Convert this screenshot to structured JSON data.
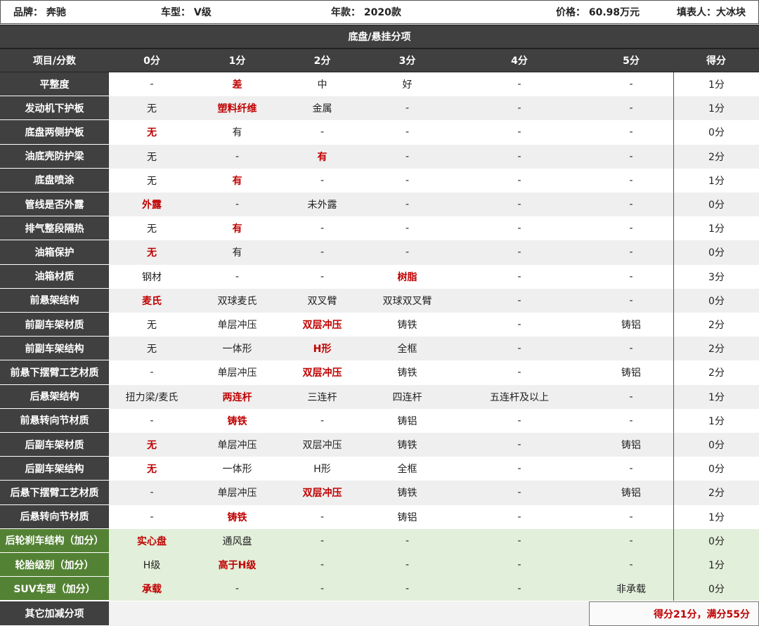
{
  "header": {
    "brand": "品牌：  奔驰",
    "model": "车型：  V级",
    "year": "年款：  2020款",
    "price": "价格：  60.98万元",
    "author": "填表人：大冰块"
  },
  "title": "底盘/悬挂分项",
  "columns": [
    "项目/分数",
    "0分",
    "1分",
    "2分",
    "3分",
    "4分",
    "5分",
    "得分"
  ],
  "rows": [
    {
      "label": "平整度",
      "cells": [
        "-",
        "差",
        "中",
        "好",
        "-",
        "-"
      ],
      "hl": 1,
      "score": "1分"
    },
    {
      "label": "发动机下护板",
      "cells": [
        "无",
        "塑料纤维",
        "金属",
        "-",
        "-",
        "-"
      ],
      "hl": 1,
      "score": "1分"
    },
    {
      "label": "底盘两侧护板",
      "cells": [
        "无",
        "有",
        "-",
        "-",
        "-",
        "-"
      ],
      "hl": 0,
      "score": "0分"
    },
    {
      "label": "油底壳防护梁",
      "cells": [
        "无",
        "-",
        "有",
        "-",
        "-",
        "-"
      ],
      "hl": 2,
      "score": "2分"
    },
    {
      "label": "底盘喷涂",
      "cells": [
        "无",
        "有",
        "-",
        "-",
        "-",
        "-"
      ],
      "hl": 1,
      "score": "1分"
    },
    {
      "label": "管线是否外露",
      "cells": [
        "外露",
        "-",
        "未外露",
        "-",
        "-",
        "-"
      ],
      "hl": 0,
      "score": "0分"
    },
    {
      "label": "排气整段隔热",
      "cells": [
        "无",
        "有",
        "-",
        "-",
        "-",
        "-"
      ],
      "hl": 1,
      "score": "1分"
    },
    {
      "label": "油箱保护",
      "cells": [
        "无",
        "有",
        "-",
        "-",
        "-",
        "-"
      ],
      "hl": 0,
      "score": "0分"
    },
    {
      "label": "油箱材质",
      "cells": [
        "钢材",
        "-",
        "-",
        "树脂",
        "-",
        "-"
      ],
      "hl": 3,
      "score": "3分"
    },
    {
      "label": "前悬架结构",
      "cells": [
        "麦氏",
        "双球麦氏",
        "双叉臂",
        "双球双叉臂",
        "-",
        "-"
      ],
      "hl": 0,
      "score": "0分"
    },
    {
      "label": "前副车架材质",
      "cells": [
        "无",
        "单层冲压",
        "双层冲压",
        "铸铁",
        "-",
        "铸铝"
      ],
      "hl": 2,
      "score": "2分"
    },
    {
      "label": "前副车架结构",
      "cells": [
        "无",
        "一体形",
        "H形",
        "全框",
        "-",
        "-"
      ],
      "hl": 2,
      "score": "2分"
    },
    {
      "label": "前悬下摆臂工艺材质",
      "cells": [
        "-",
        "单层冲压",
        "双层冲压",
        "铸铁",
        "-",
        "铸铝"
      ],
      "hl": 2,
      "score": "2分"
    },
    {
      "label": "后悬架结构",
      "cells": [
        "扭力梁/麦氏",
        "两连杆",
        "三连杆",
        "四连杆",
        "五连杆及以上",
        "-"
      ],
      "hl": 1,
      "score": "1分"
    },
    {
      "label": "前悬转向节材质",
      "cells": [
        "-",
        "铸铁",
        "-",
        "铸铝",
        "-",
        "-"
      ],
      "hl": 1,
      "score": "1分"
    },
    {
      "label": "后副车架材质",
      "cells": [
        "无",
        "单层冲压",
        "双层冲压",
        "铸铁",
        "-",
        "铸铝"
      ],
      "hl": 0,
      "score": "0分"
    },
    {
      "label": "后副车架结构",
      "cells": [
        "无",
        "一体形",
        "H形",
        "全框",
        "-",
        "-"
      ],
      "hl": 0,
      "score": "0分"
    },
    {
      "label": "后悬下摆臂工艺材质",
      "cells": [
        "-",
        "单层冲压",
        "双层冲压",
        "铸铁",
        "-",
        "铸铝"
      ],
      "hl": 2,
      "score": "2分"
    },
    {
      "label": "后悬转向节材质",
      "cells": [
        "-",
        "铸铁",
        "-",
        "铸铝",
        "-",
        "-"
      ],
      "hl": 1,
      "score": "1分"
    },
    {
      "label": "后轮刹车结构（加分）",
      "cells": [
        "实心盘",
        "通风盘",
        "-",
        "-",
        "-",
        "-"
      ],
      "hl": 0,
      "score": "0分",
      "bonus": true
    },
    {
      "label": "轮胎级别（加分）",
      "cells": [
        "H级",
        "高于H级",
        "-",
        "-",
        "-",
        "-"
      ],
      "hl": 1,
      "score": "1分",
      "bonus": true
    },
    {
      "label": "SUV车型（加分）",
      "cells": [
        "承载",
        "-",
        "-",
        "-",
        "-",
        "非承载"
      ],
      "hl": 0,
      "score": "0分",
      "bonus": true
    }
  ],
  "footer": {
    "label": "其它加减分项",
    "total": "得分21分，满分55分"
  },
  "colors": {
    "highlight": "#c00000",
    "dark": "#404040",
    "bonus_label": "#548235",
    "bonus_bg": "#e2efda"
  }
}
